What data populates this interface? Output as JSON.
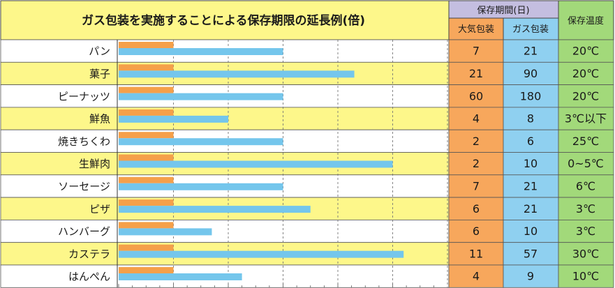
{
  "chart_data": {
    "type": "bar",
    "title": "ガス包装を実施することによる保存期限の延長例(倍)",
    "columns": {
      "group_header": "保存期間(日)",
      "air": "大気包装",
      "gas": "ガス包装",
      "temp": "保存温度"
    },
    "categories": [
      "パン",
      "菓子",
      "ピーナッツ",
      "鮮魚",
      "焼きちくわ",
      "生鮮肉",
      "ソーセージ",
      "ピザ",
      "ハンバーグ",
      "カステラ",
      "はんぺん"
    ],
    "series": [
      {
        "name": "大気包装",
        "values": [
          1,
          1,
          1,
          1,
          1,
          1,
          1,
          1,
          1,
          1,
          1
        ]
      },
      {
        "name": "ガス包装",
        "values": [
          3,
          4.3,
          3,
          2,
          3,
          5,
          3,
          3.5,
          1.7,
          5.2,
          2.25
        ]
      }
    ],
    "xlim": [
      0,
      6
    ],
    "grid": true,
    "table": {
      "air_days": [
        "7",
        "21",
        "60",
        "4",
        "2",
        "2",
        "7",
        "6",
        "6",
        "11",
        "4"
      ],
      "gas_days": [
        "21",
        "90",
        "180",
        "8",
        "6",
        "10",
        "21",
        "21",
        "10",
        "57",
        "9"
      ],
      "temp": [
        "20℃",
        "20℃",
        "20℃",
        "3℃以下",
        "25℃",
        "0~5℃",
        "6℃",
        "3℃",
        "3℃",
        "30℃",
        "10℃"
      ]
    },
    "colors": {
      "air_bar": "#f5a04a",
      "gas_bar": "#74c6ec",
      "row_yellow": "#fdf78a",
      "row_white": "#ffffff",
      "air_col": "#f7a75c",
      "gas_col": "#8fd0f0",
      "temp_col": "#a2d97a",
      "group_header": "#c4bee0"
    }
  }
}
